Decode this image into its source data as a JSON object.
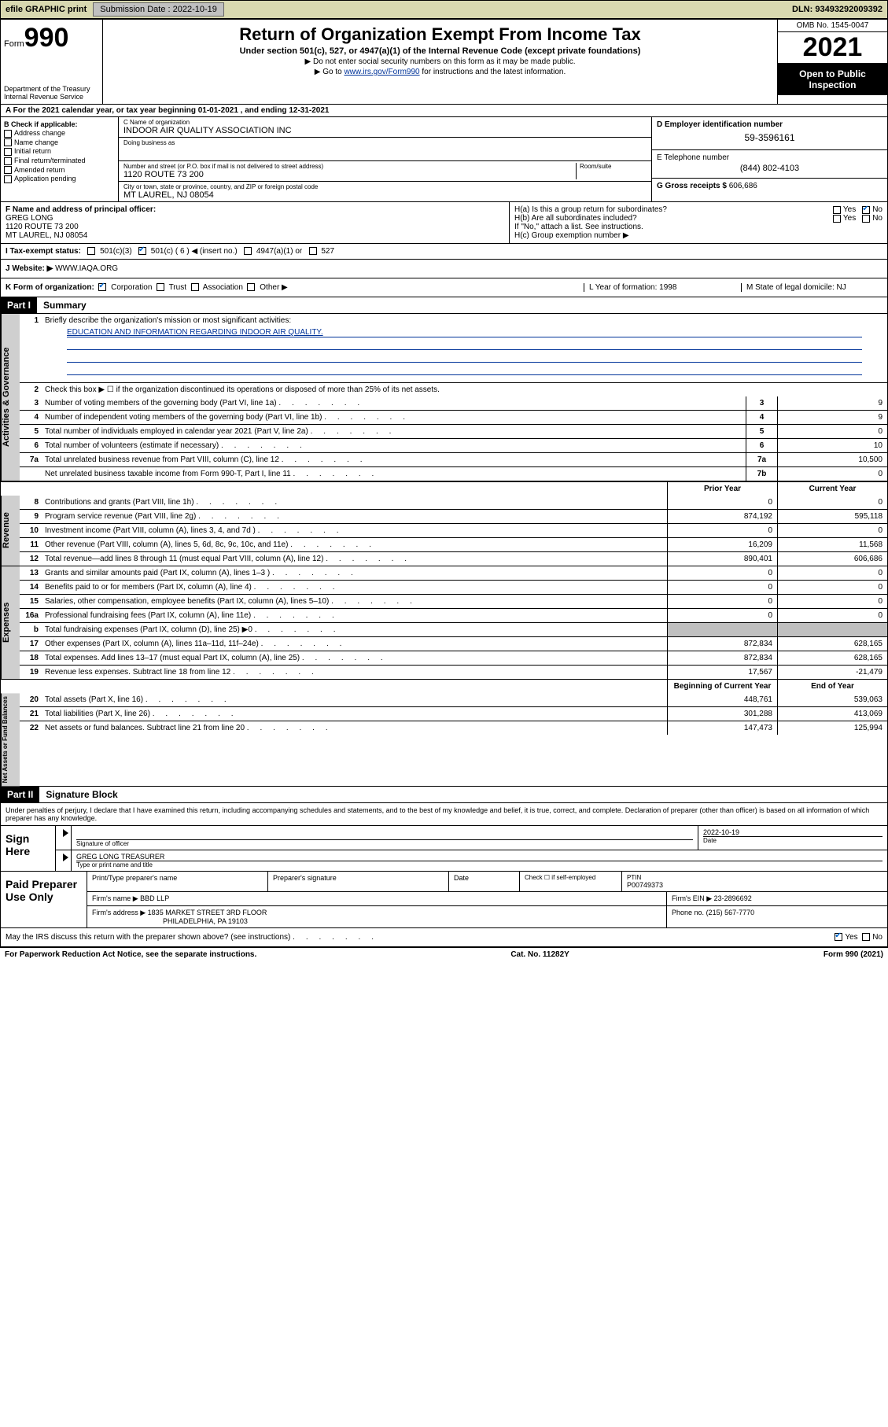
{
  "colors": {
    "topbar_bg": "#d8d8b0",
    "button_bg": "#c0c0c0",
    "link": "#003399",
    "tab_bg": "#cfcfcf",
    "grey_cell": "#bfbfbf",
    "black": "#000000",
    "check": "#0066cc"
  },
  "topbar": {
    "efile": "efile GRAPHIC print",
    "sub_lbl": "Submission Date : 2022-10-19",
    "dln_lbl": "DLN: 93493292009392"
  },
  "header": {
    "form_word": "Form",
    "form_num": "990",
    "title": "Return of Organization Exempt From Income Tax",
    "subtitle": "Under section 501(c), 527, or 4947(a)(1) of the Internal Revenue Code (except private foundations)",
    "note1": "▶ Do not enter social security numbers on this form as it may be made public.",
    "note2_pre": "▶ Go to ",
    "note2_link": "www.irs.gov/Form990",
    "note2_post": " for instructions and the latest information.",
    "dept": "Department of the Treasury",
    "irs": "Internal Revenue Service",
    "omb": "OMB No. 1545-0047",
    "year": "2021",
    "open": "Open to Public Inspection"
  },
  "secA": {
    "text": "A For the 2021 calendar year, or tax year beginning 01-01-2021   , and ending 12-31-2021"
  },
  "colB": {
    "hdr": "B Check if applicable:",
    "opts": [
      "Address change",
      "Name change",
      "Initial return",
      "Final return/terminated",
      "Amended return",
      "Application pending"
    ]
  },
  "colC": {
    "name_lbl": "C Name of organization",
    "name": "INDOOR AIR QUALITY ASSOCIATION INC",
    "dba_lbl": "Doing business as",
    "dba": "",
    "addr_lbl": "Number and street (or P.O. box if mail is not delivered to street address)",
    "room_lbl": "Room/suite",
    "addr": "1120 ROUTE 73 200",
    "city_lbl": "City or town, state or province, country, and ZIP or foreign postal code",
    "city": "MT LAUREL, NJ  08054"
  },
  "colD": {
    "ein_lbl": "D Employer identification number",
    "ein": "59-3596161",
    "tel_lbl": "E Telephone number",
    "tel": "(844) 802-4103",
    "gross_lbl": "G Gross receipts $",
    "gross": "606,686"
  },
  "secF": {
    "lbl": "F Name and address of principal officer:",
    "name": "GREG LONG",
    "addr1": "1120 ROUTE 73 200",
    "addr2": "MT LAUREL, NJ  08054"
  },
  "secH": {
    "ha": "H(a)  Is this a group return for subordinates?",
    "hb": "H(b)  Are all subordinates included?",
    "hb_note": "If \"No,\" attach a list. See instructions.",
    "hc": "H(c)  Group exemption number ▶",
    "yes": "Yes",
    "no": "No"
  },
  "secI": {
    "lbl": "I   Tax-exempt status:",
    "o1": "501(c)(3)",
    "o2": "501(c) ( 6 ) ◀ (insert no.)",
    "o3": "4947(a)(1) or",
    "o4": "527"
  },
  "secJ": {
    "lbl": "J   Website: ▶",
    "val": "WWW.IAQA.ORG"
  },
  "secK": {
    "lbl": "K Form of organization:",
    "o1": "Corporation",
    "o2": "Trust",
    "o3": "Association",
    "o4": "Other ▶",
    "L": "L Year of formation: 1998",
    "M": "M State of legal domicile: NJ"
  },
  "part1": {
    "hdr": "Part I",
    "title": "Summary",
    "tabs": {
      "gov": "Activities & Governance",
      "rev": "Revenue",
      "exp": "Expenses",
      "net": "Net Assets or Fund Balances"
    },
    "l1": "Briefly describe the organization's mission or most significant activities:",
    "l1v": "EDUCATION AND INFORMATION REGARDING INDOOR AIR QUALITY.",
    "l2": "Check this box ▶ ☐  if the organization discontinued its operations or disposed of more than 25% of its net assets.",
    "lines_gov": [
      {
        "n": "3",
        "t": "Number of voting members of the governing body (Part VI, line 1a)",
        "b": "3",
        "v": "9"
      },
      {
        "n": "4",
        "t": "Number of independent voting members of the governing body (Part VI, line 1b)",
        "b": "4",
        "v": "9"
      },
      {
        "n": "5",
        "t": "Total number of individuals employed in calendar year 2021 (Part V, line 2a)",
        "b": "5",
        "v": "0"
      },
      {
        "n": "6",
        "t": "Total number of volunteers (estimate if necessary)",
        "b": "6",
        "v": "10"
      },
      {
        "n": "7a",
        "t": "Total unrelated business revenue from Part VIII, column (C), line 12",
        "b": "7a",
        "v": "10,500"
      },
      {
        "n": "",
        "t": "Net unrelated business taxable income from Form 990-T, Part I, line 11",
        "b": "7b",
        "v": "0"
      }
    ],
    "col_prior": "Prior Year",
    "col_curr": "Current Year",
    "lines_rev": [
      {
        "n": "8",
        "t": "Contributions and grants (Part VIII, line 1h)",
        "p": "0",
        "c": "0"
      },
      {
        "n": "9",
        "t": "Program service revenue (Part VIII, line 2g)",
        "p": "874,192",
        "c": "595,118"
      },
      {
        "n": "10",
        "t": "Investment income (Part VIII, column (A), lines 3, 4, and 7d )",
        "p": "0",
        "c": "0"
      },
      {
        "n": "11",
        "t": "Other revenue (Part VIII, column (A), lines 5, 6d, 8c, 9c, 10c, and 11e)",
        "p": "16,209",
        "c": "11,568"
      },
      {
        "n": "12",
        "t": "Total revenue—add lines 8 through 11 (must equal Part VIII, column (A), line 12)",
        "p": "890,401",
        "c": "606,686"
      }
    ],
    "lines_exp": [
      {
        "n": "13",
        "t": "Grants and similar amounts paid (Part IX, column (A), lines 1–3 )",
        "p": "0",
        "c": "0"
      },
      {
        "n": "14",
        "t": "Benefits paid to or for members (Part IX, column (A), line 4)",
        "p": "0",
        "c": "0"
      },
      {
        "n": "15",
        "t": "Salaries, other compensation, employee benefits (Part IX, column (A), lines 5–10)",
        "p": "0",
        "c": "0"
      },
      {
        "n": "16a",
        "t": "Professional fundraising fees (Part IX, column (A), line 11e)",
        "p": "0",
        "c": "0"
      },
      {
        "n": "b",
        "t": "Total fundraising expenses (Part IX, column (D), line 25) ▶0",
        "p": "",
        "c": "",
        "grey": true
      },
      {
        "n": "17",
        "t": "Other expenses (Part IX, column (A), lines 11a–11d, 11f–24e)",
        "p": "872,834",
        "c": "628,165"
      },
      {
        "n": "18",
        "t": "Total expenses. Add lines 13–17 (must equal Part IX, column (A), line 25)",
        "p": "872,834",
        "c": "628,165"
      },
      {
        "n": "19",
        "t": "Revenue less expenses. Subtract line 18 from line 12",
        "p": "17,567",
        "c": "-21,479"
      }
    ],
    "col_beg": "Beginning of Current Year",
    "col_end": "End of Year",
    "lines_net": [
      {
        "n": "20",
        "t": "Total assets (Part X, line 16)",
        "p": "448,761",
        "c": "539,063"
      },
      {
        "n": "21",
        "t": "Total liabilities (Part X, line 26)",
        "p": "301,288",
        "c": "413,069"
      },
      {
        "n": "22",
        "t": "Net assets or fund balances. Subtract line 21 from line 20",
        "p": "147,473",
        "c": "125,994"
      }
    ]
  },
  "part2": {
    "hdr": "Part II",
    "title": "Signature Block",
    "decl": "Under penalties of perjury, I declare that I have examined this return, including accompanying schedules and statements, and to the best of my knowledge and belief, it is true, correct, and complete. Declaration of preparer (other than officer) is based on all information of which preparer has any knowledge."
  },
  "sign": {
    "here": "Sign Here",
    "sig_lbl": "Signature of officer",
    "date_lbl": "Date",
    "date": "2022-10-19",
    "name": "GREG LONG TREASURER",
    "name_lbl": "Type or print name and title"
  },
  "paid": {
    "lbl": "Paid Preparer Use Only",
    "c1": "Print/Type preparer's name",
    "c2": "Preparer's signature",
    "c3": "Date",
    "c4a": "Check ☐ if self-employed",
    "c4b_lbl": "PTIN",
    "c4b": "P00749373",
    "firm_lbl": "Firm's name    ▶",
    "firm": "BBD LLP",
    "ein_lbl": "Firm's EIN ▶",
    "ein": "23-2896692",
    "addr_lbl": "Firm's address ▶",
    "addr1": "1835 MARKET STREET 3RD FLOOR",
    "addr2": "PHILADELPHIA, PA  19103",
    "ph_lbl": "Phone no.",
    "ph": "(215) 567-7770"
  },
  "bottom": {
    "q": "May the IRS discuss this return with the preparer shown above? (see instructions)",
    "yes": "Yes",
    "no": "No",
    "pra": "For Paperwork Reduction Act Notice, see the separate instructions.",
    "cat": "Cat. No. 11282Y",
    "form": "Form 990 (2021)"
  }
}
